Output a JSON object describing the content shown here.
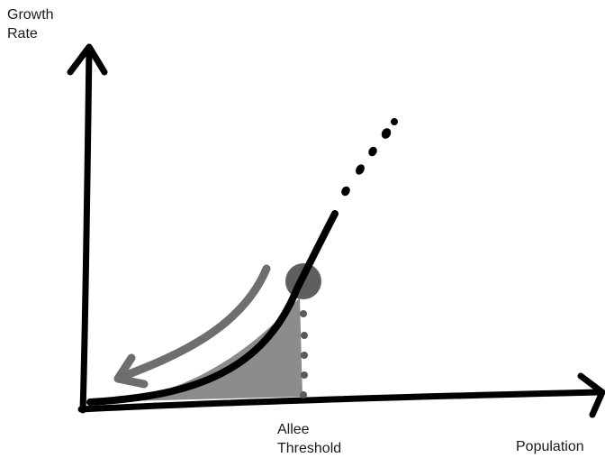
{
  "diagram": {
    "y_axis_label": [
      "Growth",
      "Rate"
    ],
    "x_axis_label": "Population",
    "threshold_label": [
      "Allee",
      "Threshold"
    ]
  },
  "colors": {
    "curve": "#000000",
    "axes": "#000000",
    "shaded_region": "#8c8c8c",
    "return_arrow": "#6e6e6e",
    "threshold_marker": "#5f5f5f",
    "dotted_line": "#5a5a5a"
  }
}
